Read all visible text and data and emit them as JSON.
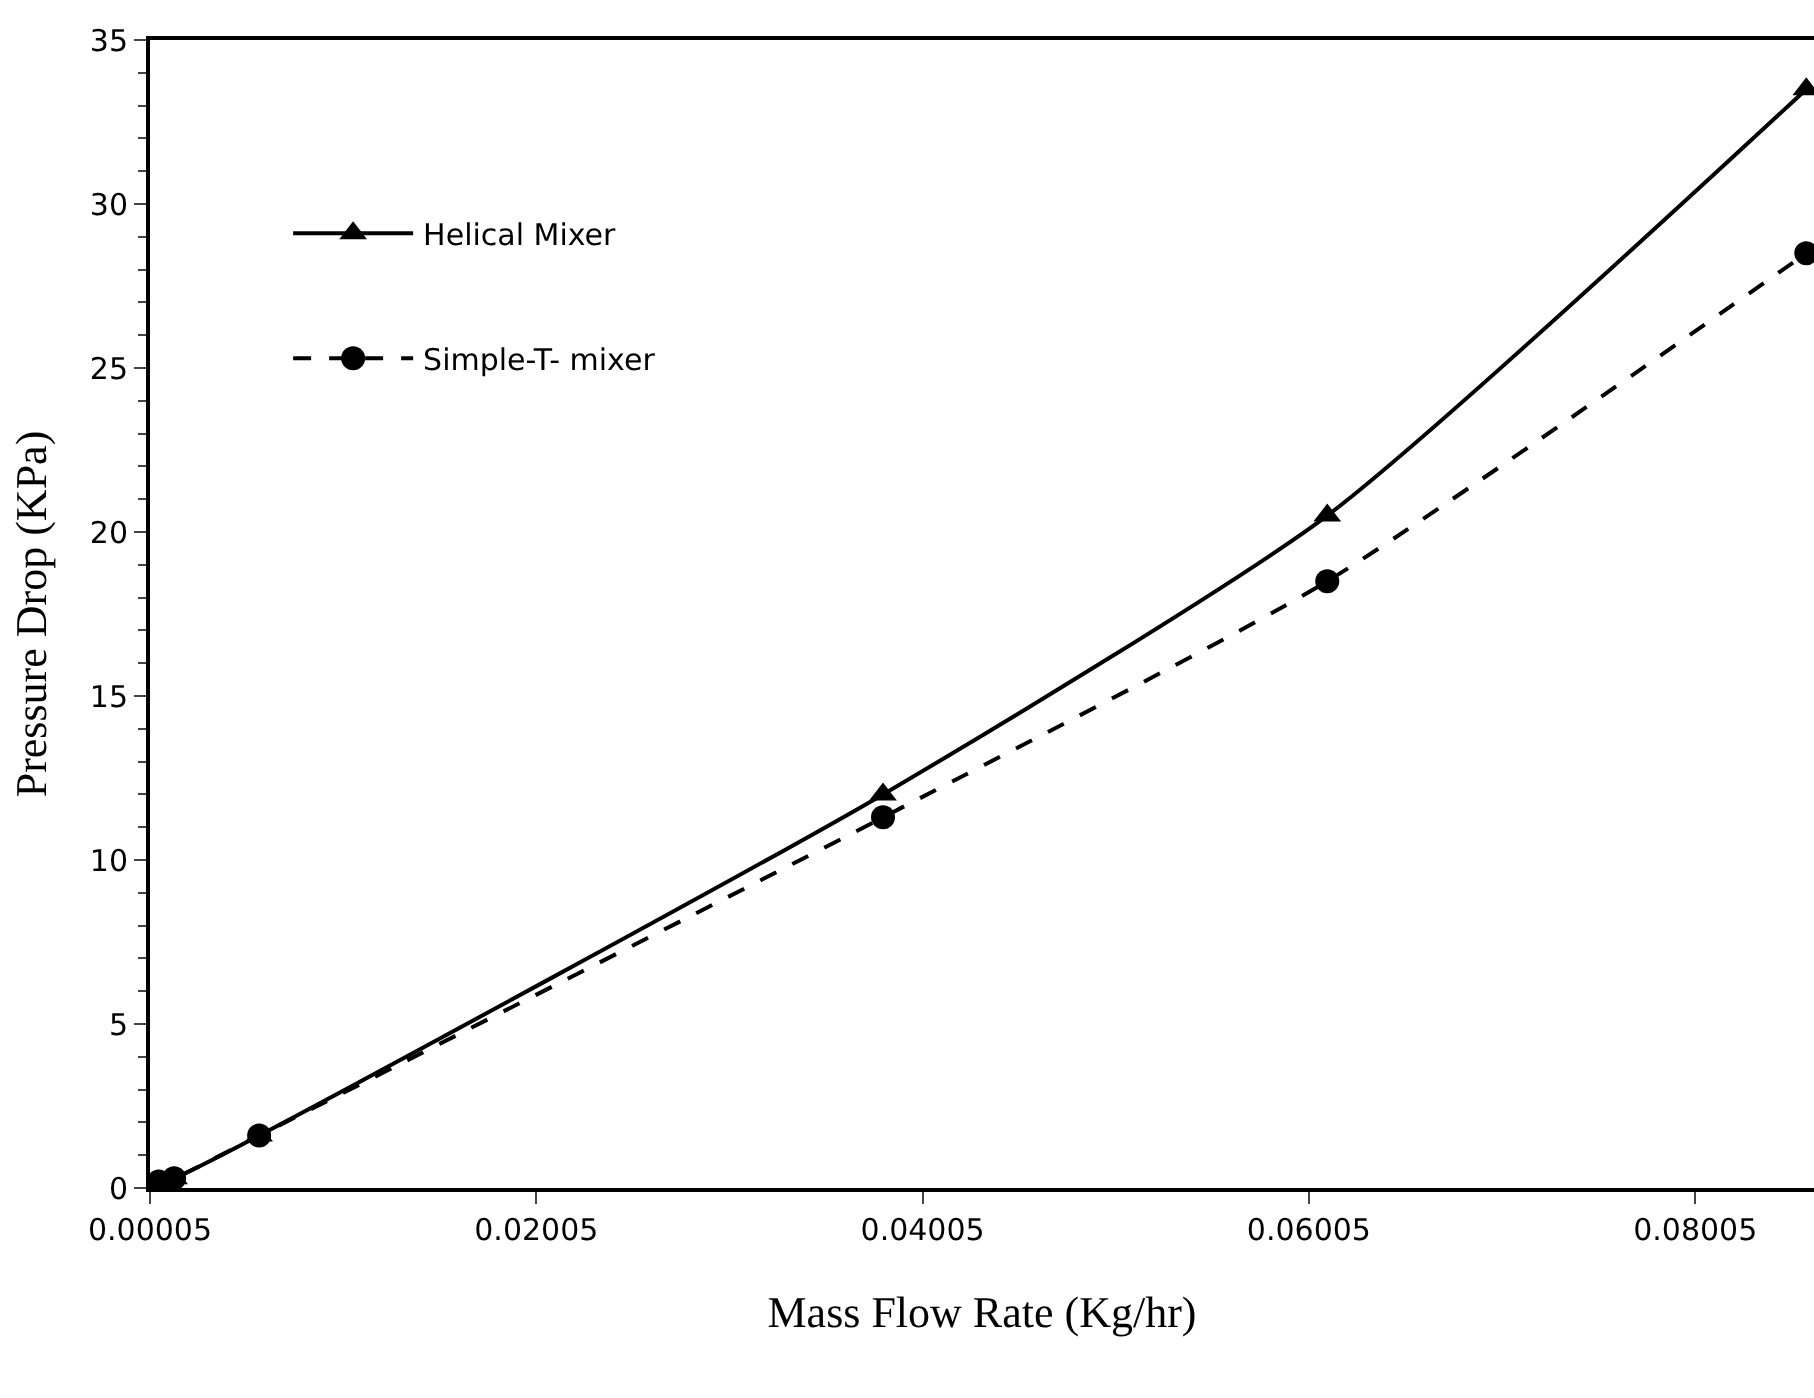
{
  "chart_data": {
    "type": "line",
    "xlabel": "Mass Flow Rate (Kg/hr)",
    "ylabel": "Pressure Drop (KPa)",
    "xlim": [
      5e-05,
      0.0862
    ],
    "xticks": [
      {
        "value": 5e-05,
        "label": "0.00005"
      },
      0.02005,
      0.04005,
      0.06005,
      0.08005
    ],
    "ylim": [
      0,
      35
    ],
    "yticks": [
      0,
      5,
      10,
      15,
      20,
      25,
      30,
      35
    ],
    "legend": "top left",
    "series": [
      {
        "name": "Helical Mixer",
        "color": "#000000",
        "marker": "triangle",
        "line_style": "solid",
        "x": [
          5e-05,
          0.0005,
          0.0013,
          0.0057,
          0.038,
          0.061,
          0.0858
        ],
        "values": [
          0,
          0.2,
          0.3,
          1.6,
          12.0,
          20.5,
          33.5
        ]
      },
      {
        "name": "Simple-T- mixer",
        "color": "#000000",
        "marker": "circle",
        "line_style": "dashed",
        "x": [
          5e-05,
          0.0005,
          0.0013,
          0.0057,
          0.038,
          0.061,
          0.0858
        ],
        "values": [
          0,
          0.2,
          0.3,
          1.6,
          11.3,
          18.5,
          28.5
        ]
      }
    ]
  }
}
